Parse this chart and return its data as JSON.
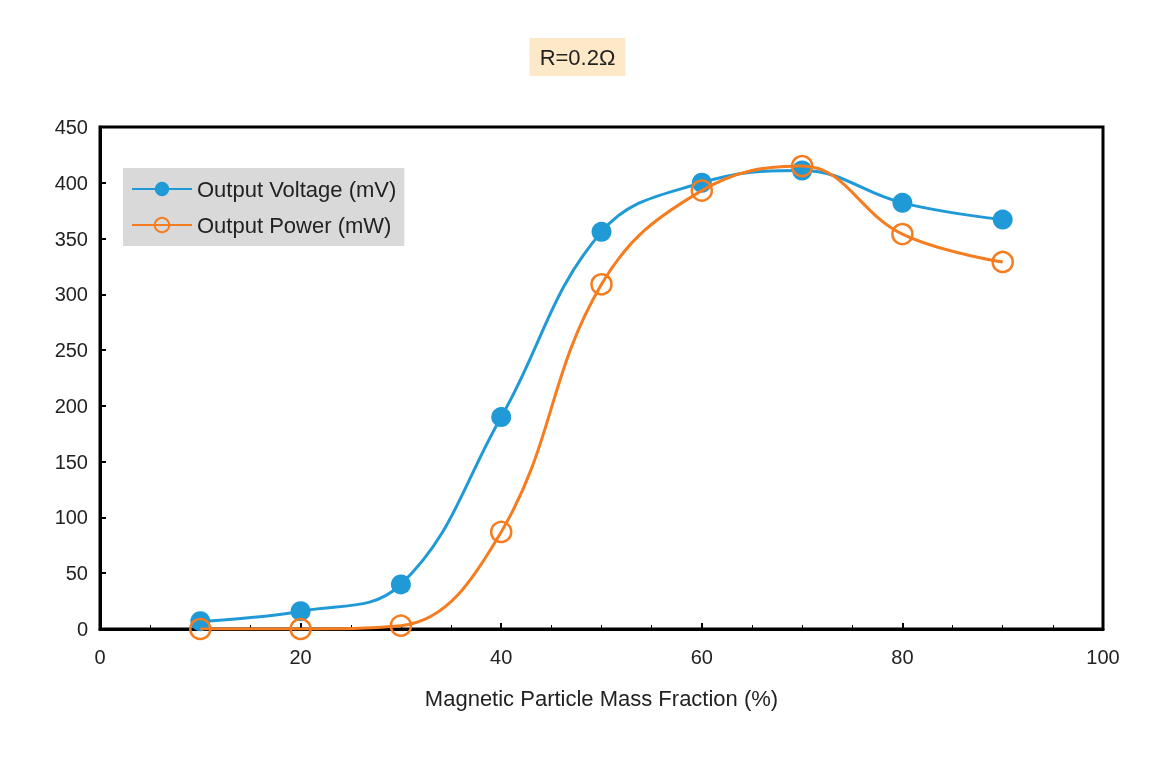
{
  "chart_data": {
    "type": "line",
    "title": "R=0.2Ω",
    "xlabel": "Magnetic Particle Mass Fraction (%)",
    "x": [
      10,
      20,
      30,
      40,
      50,
      60,
      70,
      80,
      90
    ],
    "series": [
      {
        "name": "Output Voltage (mV)",
        "color": "#1f9ad6",
        "values": [
          7,
          16,
          40,
          190,
          356,
          400,
          411,
          382,
          367
        ]
      },
      {
        "name": "Output Power (mW)",
        "color": "#f57c1f",
        "values": [
          0,
          0,
          3,
          87,
          309,
          393,
          415,
          354,
          329
        ]
      }
    ],
    "xlim": [
      0,
      100
    ],
    "xticks": [
      0,
      20,
      40,
      60,
      80,
      100
    ],
    "ylim": [
      0,
      450
    ],
    "yticks": [
      0,
      50,
      100,
      150,
      200,
      250,
      300,
      350,
      400,
      450
    ],
    "grid": false,
    "legend": "top left",
    "marker": "circle",
    "line_style": "solid"
  }
}
